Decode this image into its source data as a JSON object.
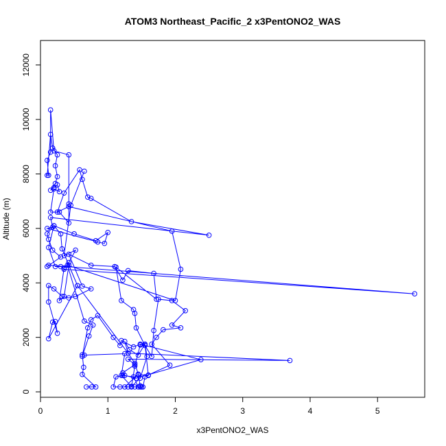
{
  "chart_data": {
    "type": "line",
    "title": "ATOM3 Northeast_Pacific_2 x3PentONO2_WAS",
    "xlabel": "x3PentONO2_WAS",
    "ylabel": "Altitude (m)",
    "xlim": [
      0,
      5.7
    ],
    "ylim": [
      -200,
      12900
    ],
    "xticks": [
      0,
      1,
      2,
      3,
      4,
      5
    ],
    "yticks": [
      0,
      2000,
      4000,
      6000,
      8000,
      10000,
      12000
    ],
    "grid": false,
    "legend": "none",
    "color": "#0000ff",
    "marker": "open-circle",
    "series": [
      {
        "values": [
          [
            0.68,
            180
          ],
          [
            0.76,
            180
          ],
          [
            0.82,
            180
          ],
          [
            0.62,
            640
          ],
          [
            0.64,
            900
          ],
          [
            0.62,
            1360
          ],
          [
            0.65,
            1350
          ],
          [
            1.25,
            1400
          ],
          [
            1.2,
            600
          ],
          [
            1.35,
            200
          ],
          [
            1.48,
            500
          ],
          [
            1.58,
            1300
          ],
          [
            1.55,
            1750
          ],
          [
            1.45,
            1350
          ],
          [
            1.32,
            1550
          ],
          [
            1.25,
            1850
          ],
          [
            1.3,
            1420
          ],
          [
            1.4,
            1050
          ],
          [
            1.45,
            650
          ],
          [
            1.25,
            180
          ],
          [
            1.52,
            180
          ],
          [
            1.55,
            550
          ],
          [
            1.6,
            600
          ],
          [
            1.55,
            1740
          ],
          [
            1.48,
            1720
          ],
          [
            1.4,
            950
          ],
          [
            1.35,
            180
          ],
          [
            1.18,
            180
          ],
          [
            1.3,
            180
          ],
          [
            1.45,
            180
          ],
          [
            1.38,
            550
          ],
          [
            1.22,
            600
          ],
          [
            1.12,
            550
          ],
          [
            1.08,
            180
          ],
          [
            1.4,
            180
          ],
          [
            1.48,
            180
          ],
          [
            1.5,
            180
          ],
          [
            1.48,
            220
          ],
          [
            1.45,
            620
          ],
          [
            1.6,
            620
          ],
          [
            1.92,
            980
          ],
          [
            1.65,
            1750
          ],
          [
            1.72,
            2000
          ],
          [
            1.82,
            2280
          ],
          [
            2.08,
            2350
          ],
          [
            1.95,
            2450
          ],
          [
            2.15,
            2980
          ],
          [
            1.95,
            3350
          ],
          [
            1.75,
            3400
          ],
          [
            1.68,
            2250
          ],
          [
            1.65,
            1300
          ],
          [
            1.55,
            1700
          ],
          [
            1.42,
            2350
          ],
          [
            1.4,
            2880
          ],
          [
            1.38,
            3020
          ],
          [
            1.2,
            3350
          ],
          [
            1.12,
            4580
          ],
          [
            1.72,
            3400
          ],
          [
            1.68,
            4350
          ],
          [
            1.3,
            4450
          ],
          [
            1.22,
            4100
          ],
          [
            1.1,
            4600
          ],
          [
            0.75,
            4650
          ],
          [
            0.42,
            5050
          ],
          [
            0.62,
            3880
          ],
          [
            0.75,
            3780
          ],
          [
            0.52,
            3500
          ],
          [
            0.42,
            3450
          ],
          [
            0.32,
            3500
          ],
          [
            0.2,
            3780
          ],
          [
            0.12,
            3900
          ],
          [
            0.12,
            3300
          ],
          [
            0.25,
            2150
          ],
          [
            0.22,
            2580
          ],
          [
            0.18,
            2560
          ],
          [
            0.12,
            1950
          ],
          [
            0.55,
            3900
          ],
          [
            0.32,
            5250
          ],
          [
            0.3,
            5800
          ],
          [
            0.2,
            6100
          ],
          [
            0.1,
            5800
          ],
          [
            0.12,
            5600
          ],
          [
            0.18,
            5200
          ],
          [
            0.3,
            4950
          ],
          [
            0.1,
            4600
          ],
          [
            0.12,
            4650
          ],
          [
            5.55,
            3600
          ],
          [
            0.35,
            4500
          ],
          [
            0.3,
            4600
          ],
          [
            0.22,
            4600
          ],
          [
            0.12,
            5300
          ],
          [
            0.2,
            6100
          ],
          [
            0.5,
            5800
          ],
          [
            0.82,
            5550
          ],
          [
            1.0,
            5850
          ],
          [
            0.95,
            5450
          ],
          [
            0.85,
            5500
          ],
          [
            0.1,
            6000
          ],
          [
            0.18,
            6050
          ],
          [
            0.15,
            6400
          ],
          [
            2.5,
            5750
          ],
          [
            1.35,
            6250
          ],
          [
            0.75,
            7100
          ],
          [
            0.7,
            7150
          ],
          [
            0.62,
            7800
          ],
          [
            0.58,
            8150
          ],
          [
            0.35,
            7300
          ],
          [
            0.25,
            6600
          ],
          [
            0.42,
            6800
          ],
          [
            0.42,
            6900
          ],
          [
            0.42,
            6200
          ],
          [
            0.28,
            6600
          ],
          [
            0.15,
            6600
          ],
          [
            0.2,
            7450
          ],
          [
            0.28,
            7350
          ],
          [
            0.25,
            7600
          ],
          [
            0.2,
            7500
          ],
          [
            0.15,
            7400
          ],
          [
            0.22,
            7650
          ],
          [
            0.25,
            7900
          ],
          [
            0.22,
            8300
          ],
          [
            0.25,
            8700
          ],
          [
            0.18,
            8950
          ],
          [
            0.15,
            9450
          ],
          [
            0.1,
            7950
          ],
          [
            0.12,
            7950
          ],
          [
            0.1,
            8500
          ],
          [
            0.15,
            8800
          ],
          [
            0.15,
            10350
          ],
          [
            0.2,
            8850
          ],
          [
            0.42,
            8700
          ],
          [
            0.42,
            6800
          ],
          [
            1.95,
            5900
          ],
          [
            2.08,
            4500
          ],
          [
            2.0,
            3350
          ],
          [
            0.4,
            4650
          ],
          [
            0.65,
            2600
          ],
          [
            0.78,
            2450
          ],
          [
            0.72,
            2050
          ],
          [
            0.62,
            1300
          ],
          [
            0.7,
            2350
          ],
          [
            0.75,
            2650
          ],
          [
            0.85,
            2800
          ],
          [
            1.08,
            2000
          ],
          [
            1.18,
            1700
          ],
          [
            1.2,
            1880
          ],
          [
            1.38,
            1650
          ],
          [
            1.48,
            1750
          ],
          [
            2.38,
            1180
          ],
          [
            1.42,
            500
          ],
          [
            1.25,
            600
          ],
          [
            1.22,
            700
          ],
          [
            1.4,
            1000
          ],
          [
            1.3,
            1200
          ],
          [
            3.7,
            1150
          ],
          [
            1.3,
            1420
          ],
          [
            0.55,
            3900
          ],
          [
            0.42,
            4650
          ],
          [
            0.35,
            3500
          ],
          [
            0.28,
            3350
          ],
          [
            0.35,
            4550
          ],
          [
            0.42,
            4750
          ],
          [
            0.52,
            5200
          ],
          [
            0.35,
            5000
          ],
          [
            0.45,
            6850
          ],
          [
            0.65,
            8100
          ]
        ]
      }
    ]
  }
}
